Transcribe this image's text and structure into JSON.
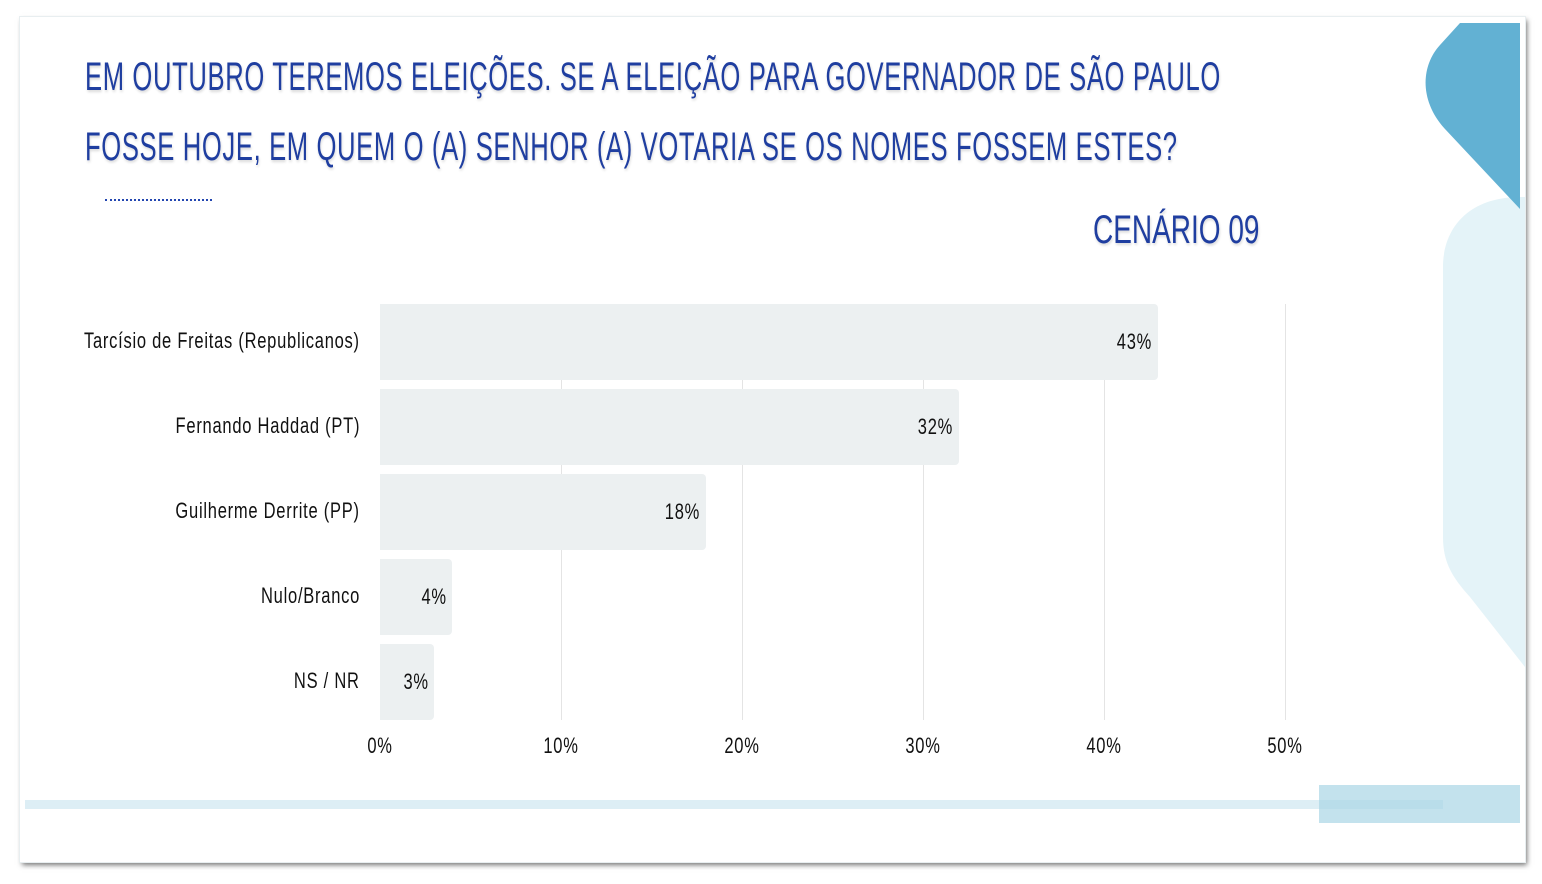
{
  "title_lines": [
    "EM OUTUBRO TEREMOS ELEIÇÕES. SE A ELEIÇÃO PARA GOVERNADOR DE SÃO PAULO",
    "FOSSE HOJE, EM QUEM O (A) SENHOR (A) VOTARIA SE OS NOMES FOSSEM ESTES?"
  ],
  "scenario": "CENÁRIO 09",
  "colors": {
    "title": "#1f3ea0",
    "bar": "#ecf0f1",
    "accent_dark": "#62b1d3",
    "accent_light": "#e4f3f8"
  },
  "chart_data": {
    "type": "bar",
    "orientation": "horizontal",
    "categories": [
      "Tarcísio de Freitas (Republicanos)",
      "Fernando Haddad (PT)",
      "Guilherme Derrite (PP)",
      "Nulo/Branco",
      "NS / NR"
    ],
    "values": [
      43,
      32,
      18,
      4,
      3
    ],
    "data_labels": [
      "43%",
      "32%",
      "18%",
      "4%",
      "3%"
    ],
    "xlim": [
      0,
      50
    ],
    "x_ticks": [
      "0%",
      "10%",
      "20%",
      "30%",
      "40%",
      "50%"
    ],
    "grid": true
  }
}
